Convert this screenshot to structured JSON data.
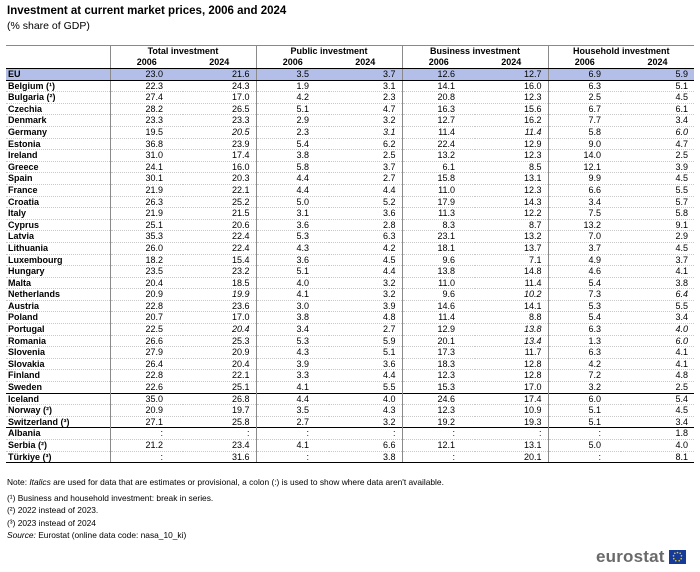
{
  "title": "Investment at current market prices, 2006 and 2024",
  "subtitle": "(% share of GDP)",
  "groups": [
    "Total investment",
    "Public investment",
    "Business investment",
    "Household investment"
  ],
  "years": [
    "2006",
    "2024"
  ],
  "rows": [
    {
      "name": "EU",
      "v": [
        "23.0",
        "21.6",
        "3.5",
        "3.7",
        "12.6",
        "12.7",
        "6.9",
        "5.9"
      ]
    },
    {
      "name": "Belgium (¹)",
      "v": [
        "22.3",
        "24.3",
        "1.9",
        "3.1",
        "14.1",
        "16.0",
        "6.3",
        "5.1"
      ]
    },
    {
      "name": "Bulgaria (²)",
      "v": [
        "27.4",
        "17.0",
        "4.2",
        "2.3",
        "20.8",
        "12.3",
        "2.5",
        "4.5"
      ]
    },
    {
      "name": "Czechia",
      "v": [
        "28.2",
        "26.5",
        "5.1",
        "4.7",
        "16.3",
        "15.6",
        "6.7",
        "6.1"
      ]
    },
    {
      "name": "Denmark",
      "v": [
        "23.3",
        "23.3",
        "2.9",
        "3.2",
        "12.7",
        "16.2",
        "7.7",
        "3.4"
      ]
    },
    {
      "name": "Germany",
      "v": [
        "19.5",
        "20.5",
        "2.3",
        "3.1",
        "11.4",
        "11.4",
        "5.8",
        "6.0"
      ]
    },
    {
      "name": "Estonia",
      "v": [
        "36.8",
        "23.9",
        "5.4",
        "6.2",
        "22.4",
        "12.9",
        "9.0",
        "4.7"
      ]
    },
    {
      "name": "Ireland",
      "v": [
        "31.0",
        "17.4",
        "3.8",
        "2.5",
        "13.2",
        "12.3",
        "14.0",
        "2.5"
      ]
    },
    {
      "name": "Greece",
      "v": [
        "24.1",
        "16.0",
        "5.8",
        "3.7",
        "6.1",
        "8.5",
        "12.1",
        "3.9"
      ]
    },
    {
      "name": "Spain",
      "v": [
        "30.1",
        "20.3",
        "4.4",
        "2.7",
        "15.8",
        "13.1",
        "9.9",
        "4.5"
      ]
    },
    {
      "name": "France",
      "v": [
        "21.9",
        "22.1",
        "4.4",
        "4.4",
        "11.0",
        "12.3",
        "6.6",
        "5.5"
      ]
    },
    {
      "name": "Croatia",
      "v": [
        "26.3",
        "25.2",
        "5.0",
        "5.2",
        "17.9",
        "14.3",
        "3.4",
        "5.7"
      ]
    },
    {
      "name": "Italy",
      "v": [
        "21.9",
        "21.5",
        "3.1",
        "3.6",
        "11.3",
        "12.2",
        "7.5",
        "5.8"
      ]
    },
    {
      "name": "Cyprus",
      "v": [
        "25.1",
        "20.6",
        "3.6",
        "2.8",
        "8.3",
        "8.7",
        "13.2",
        "9.1"
      ]
    },
    {
      "name": "Latvia",
      "v": [
        "35.3",
        "22.4",
        "5.3",
        "6.3",
        "23.1",
        "13.2",
        "7.0",
        "2.9"
      ]
    },
    {
      "name": "Lithuania",
      "v": [
        "26.0",
        "22.4",
        "4.3",
        "4.2",
        "18.1",
        "13.7",
        "3.7",
        "4.5"
      ]
    },
    {
      "name": "Luxembourg",
      "v": [
        "18.2",
        "15.4",
        "3.6",
        "4.5",
        "9.6",
        "7.1",
        "4.9",
        "3.7"
      ]
    },
    {
      "name": "Hungary",
      "v": [
        "23.5",
        "23.2",
        "5.1",
        "4.4",
        "13.8",
        "14.8",
        "4.6",
        "4.1"
      ]
    },
    {
      "name": "Malta",
      "v": [
        "20.4",
        "18.5",
        "4.0",
        "3.2",
        "11.0",
        "11.4",
        "5.4",
        "3.8"
      ]
    },
    {
      "name": "Netherlands",
      "v": [
        "20.9",
        "19.9",
        "4.1",
        "3.2",
        "9.6",
        "10.2",
        "7.3",
        "6.4"
      ]
    },
    {
      "name": "Austria",
      "v": [
        "22.8",
        "23.6",
        "3.0",
        "3.9",
        "14.6",
        "14.1",
        "5.3",
        "5.5"
      ]
    },
    {
      "name": "Poland",
      "v": [
        "20.7",
        "17.0",
        "3.8",
        "4.8",
        "11.4",
        "8.8",
        "5.4",
        "3.4"
      ]
    },
    {
      "name": "Portugal",
      "v": [
        "22.5",
        "20.4",
        "3.4",
        "2.7",
        "12.9",
        "13.8",
        "6.3",
        "4.0"
      ]
    },
    {
      "name": "Romania",
      "v": [
        "26.6",
        "25.3",
        "5.3",
        "5.9",
        "20.1",
        "13.4",
        "1.3",
        "6.0"
      ]
    },
    {
      "name": "Slovenia",
      "v": [
        "27.9",
        "20.9",
        "4.3",
        "5.1",
        "17.3",
        "11.7",
        "6.3",
        "4.1"
      ]
    },
    {
      "name": "Slovakia",
      "v": [
        "26.4",
        "20.4",
        "3.9",
        "3.6",
        "18.3",
        "12.8",
        "4.2",
        "4.1"
      ]
    },
    {
      "name": "Finland",
      "v": [
        "22.8",
        "22.1",
        "3.3",
        "4.4",
        "12.3",
        "12.8",
        "7.2",
        "4.8"
      ]
    },
    {
      "name": "Sweden",
      "v": [
        "22.6",
        "25.1",
        "4.1",
        "5.5",
        "15.3",
        "17.0",
        "3.2",
        "2.5"
      ]
    },
    {
      "name": "Iceland",
      "v": [
        "35.0",
        "26.8",
        "4.4",
        "4.0",
        "24.6",
        "17.4",
        "6.0",
        "5.4"
      ]
    },
    {
      "name": "Norway (²)",
      "v": [
        "20.9",
        "19.7",
        "3.5",
        "4.3",
        "12.3",
        "10.9",
        "5.1",
        "4.5"
      ]
    },
    {
      "name": "Switzerland (³)",
      "v": [
        "27.1",
        "25.8",
        "2.7",
        "3.2",
        "19.2",
        "19.3",
        "5.1",
        "3.4"
      ]
    },
    {
      "name": "Albania",
      "v": [
        ":",
        ":",
        ":",
        ":",
        ":",
        ":",
        ":",
        "1.8"
      ]
    },
    {
      "name": "Serbia (²)",
      "v": [
        "21.2",
        "23.4",
        "4.1",
        "6.6",
        "12.1",
        "13.1",
        "5.0",
        "4.0"
      ]
    },
    {
      "name": "Türkiye (³)",
      "v": [
        ":",
        "31.6",
        ":",
        "3.8",
        ":",
        "20.1",
        ":",
        "8.1"
      ]
    }
  ],
  "italic_cells": [
    [
      5,
      1
    ],
    [
      5,
      3
    ],
    [
      5,
      5
    ],
    [
      5,
      7
    ],
    [
      19,
      1
    ],
    [
      19,
      5
    ],
    [
      19,
      7
    ],
    [
      22,
      1
    ],
    [
      22,
      5
    ],
    [
      22,
      7
    ],
    [
      23,
      5
    ],
    [
      23,
      7
    ]
  ],
  "notes": {
    "note": "Note: Italics are used for data that are estimates or provisional, a colon (:) is used to show where data aren't available.",
    "f1": "(¹) Business and household investment: break in series.",
    "f2": "(²) 2022 instead of 2023.",
    "f3": "(³) 2023 instead of 2024",
    "source_label": "Source:",
    "source_text": " Eurostat (online data code: nasa_10_ki)"
  },
  "logo": "eurostat"
}
